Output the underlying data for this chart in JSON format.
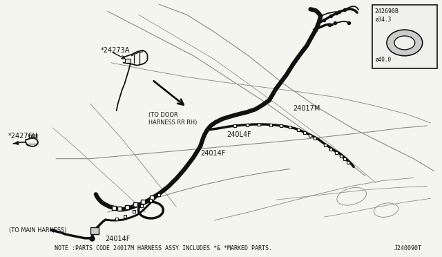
{
  "background_color": "#f5f5f0",
  "diagram_color": "#111111",
  "light_line_color": "#888888",
  "thin_line_color": "#444444",
  "note_text": "NOTE :PARTS CODE 24017M HARNESS ASSY INCLUDES *& *MARKED PARTS.",
  "diagram_id": "J240090T",
  "inset_id": "242690B",
  "inset_d1": "ø34.3",
  "inset_d2": "ø40.0",
  "label_24273A": "*24273A",
  "label_24276U": "*24276U",
  "label_24017M": "24017M",
  "label_24014F_1": "24014F",
  "label_24014F_2": "24014F",
  "label_24014F_3": "24014F",
  "label_240L4F": "240L4F",
  "label_to_door": "(TO DOOR\nHARNESS RR RH)",
  "label_to_main": "(TO MAIN HARNESS)",
  "lw_main": 4.5,
  "lw_branch": 2.5,
  "lw_thin": 1.3,
  "lw_light": 0.8,
  "fs_label": 7.0,
  "fs_note": 6.0
}
